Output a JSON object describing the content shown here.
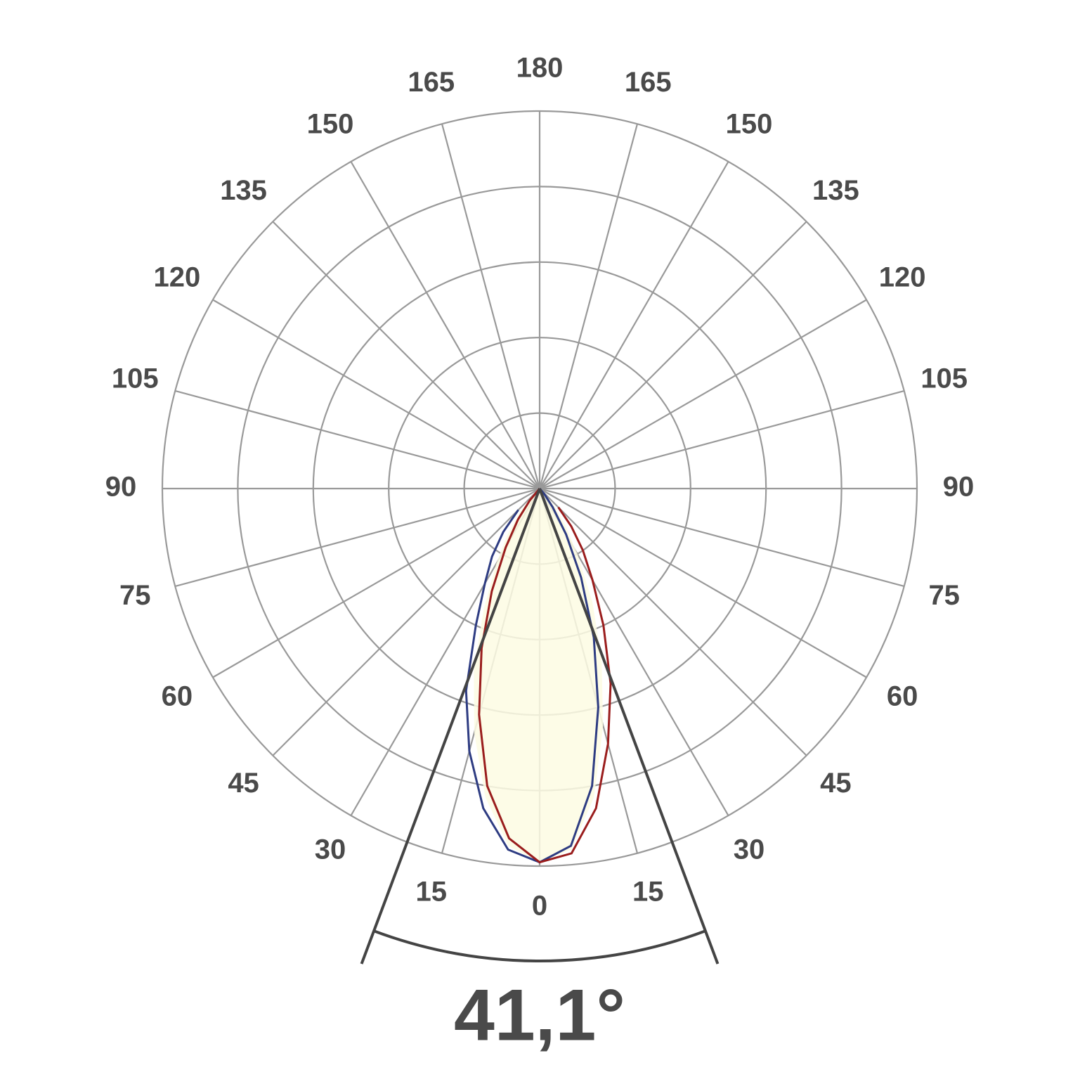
{
  "chart_data": {
    "type": "polar",
    "theta": [
      -45,
      -40,
      -35,
      -30,
      -25,
      -20,
      -15,
      -10,
      -5,
      0,
      5,
      10,
      15,
      20,
      25,
      30,
      35,
      40,
      45
    ],
    "series": [
      {
        "color": "#fdfbe3",
        "fill": true,
        "values": [
          0.03,
          0.08,
          0.15,
          0.23,
          0.35,
          0.51,
          0.67,
          0.83,
          0.95,
          0.99,
          0.96,
          0.83,
          0.65,
          0.48,
          0.33,
          0.2,
          0.12,
          0.06,
          0.02
        ]
      },
      {
        "color": "#2e3c82",
        "values": [
          0.08,
          0.15,
          0.22,
          0.29,
          0.4,
          0.57,
          0.72,
          0.86,
          0.96,
          0.99,
          0.95,
          0.8,
          0.6,
          0.42,
          0.26,
          0.14,
          0.06,
          0.02,
          0
        ]
      },
      {
        "color": "#9a1d1d",
        "values": [
          0,
          0.04,
          0.1,
          0.18,
          0.3,
          0.45,
          0.62,
          0.8,
          0.93,
          0.99,
          0.97,
          0.86,
          0.7,
          0.55,
          0.4,
          0.28,
          0.2,
          0.13,
          0.07
        ]
      }
    ],
    "rlim": [
      0,
      1
    ],
    "rticks": [
      0.2,
      0.4,
      0.6,
      0.8,
      1
    ],
    "thetaticks": [
      0,
      15,
      30,
      45,
      60,
      75,
      90,
      105,
      120,
      135,
      150,
      165,
      180
    ],
    "beam_angle": {
      "value": 41.1,
      "label": "41,1°"
    },
    "grid": true
  }
}
